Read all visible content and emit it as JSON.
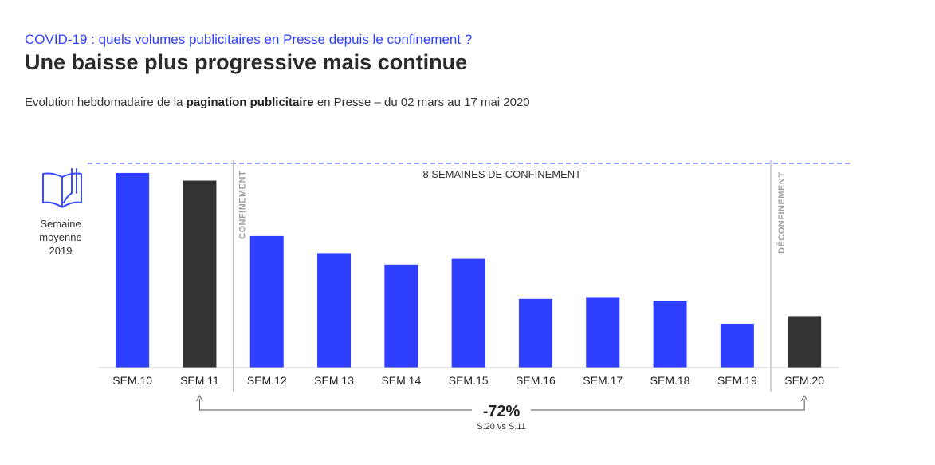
{
  "header": {
    "kicker": "COVID-19 : quels volumes publicitaires en Presse depuis le confinement ?",
    "title": "Une baisse plus progressive mais continue",
    "subtitle_pre": "Evolution hebdomadaire de la ",
    "subtitle_bold": "pagination publicitaire",
    "subtitle_post": " en Presse – du 02 mars au 17 mai 2020"
  },
  "reference": {
    "icon": "open-book-icon",
    "label_line1": "Semaine",
    "label_line2": "moyenne",
    "label_line3": "2019"
  },
  "annotations": {
    "confinement": "CONFINEMENT",
    "deconfinement": "DÉCONFINEMENT",
    "period": "8 SEMAINES DE CONFINEMENT",
    "change": "-72%",
    "change_note": "S.20 vs S.11"
  },
  "colors": {
    "accent": "#2f3fff",
    "highlight": "#333333",
    "divider": "#bbbbbb",
    "reference_line": "#5561ff"
  },
  "chart_data": {
    "type": "bar",
    "categories": [
      "SEM.10",
      "SEM.11",
      "SEM.12",
      "SEM.13",
      "SEM.14",
      "SEM.15",
      "SEM.16",
      "SEM.17",
      "SEM.18",
      "SEM.19",
      "SEM.20"
    ],
    "values": [
      102,
      98,
      69,
      60,
      54,
      57,
      36,
      37,
      35,
      23,
      27
    ],
    "reference_value": 107,
    "highlighted": [
      "SEM.11",
      "SEM.20"
    ],
    "ylim": [
      0,
      112
    ],
    "grid": false,
    "legend": "none",
    "xlabel": "",
    "ylabel": ""
  }
}
